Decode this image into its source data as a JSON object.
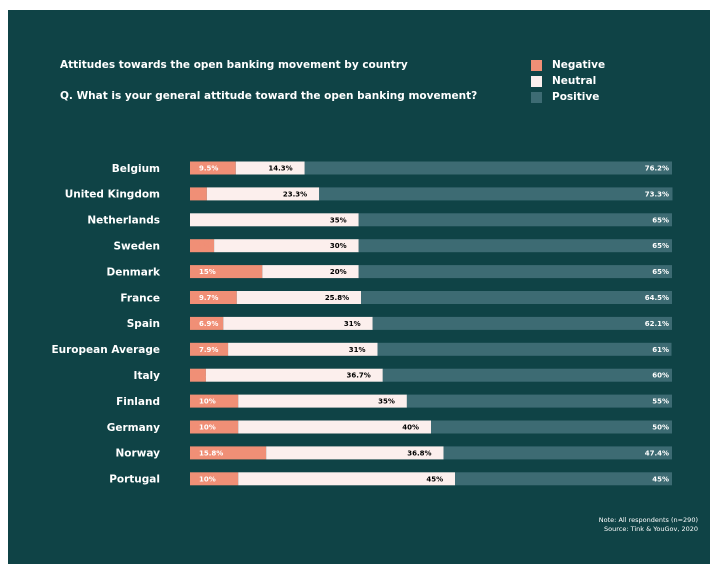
{
  "title": "Attitudes towards the open banking movement by country",
  "subtitle": "Q. What is your general attitude toward the open banking movement?",
  "note": "Note: All respondents (n=290)",
  "source": "Source: Tink & YouGov, 2020",
  "colors": {
    "background": "#0f4346",
    "negative": "#f08f76",
    "neutral": "#fcefed",
    "positive": "#3d6b73"
  },
  "legend": [
    {
      "name": "Negative",
      "color": "#f08f76"
    },
    {
      "name": "Neutral",
      "color": "#fcefed"
    },
    {
      "name": "Positive",
      "color": "#3d6b73"
    }
  ],
  "chart_data": {
    "type": "bar",
    "orientation": "horizontal",
    "stacked": true,
    "categories": [
      "Belgium",
      "United Kingdom",
      "Netherlands",
      "Sweden",
      "Denmark",
      "France",
      "Spain",
      "European Average",
      "Italy",
      "Finland",
      "Germany",
      "Norway",
      "Portugal"
    ],
    "series": [
      {
        "name": "Negative",
        "values": [
          9.5,
          3.5,
          0,
          5,
          15,
          9.7,
          6.9,
          7.9,
          3.3,
          10,
          10,
          15.8,
          10
        ],
        "labels": [
          "9.5%",
          "3.5%",
          "0%",
          "5%",
          "15%",
          "9.7%",
          "6.9%",
          "7.9%",
          "3.3%",
          "10%",
          "10%",
          "15.8%",
          "10%"
        ]
      },
      {
        "name": "Neutral",
        "values": [
          14.3,
          23.3,
          35,
          30,
          20,
          25.8,
          31,
          31,
          36.7,
          35,
          40,
          36.8,
          45
        ],
        "labels": [
          "14.3%",
          "23.3%",
          "35%",
          "30%",
          "20%",
          "25.8%",
          "31%",
          "31%",
          "36.7%",
          "35%",
          "40%",
          "36.8%",
          "45%"
        ]
      },
      {
        "name": "Positive",
        "values": [
          76.2,
          73.3,
          65,
          65,
          65,
          64.5,
          62.1,
          61,
          60,
          55,
          50,
          47.4,
          45
        ],
        "labels": [
          "76.2%",
          "73.3%",
          "65%",
          "65%",
          "65%",
          "64.5%",
          "62.1%",
          "61%",
          "60%",
          "55%",
          "50%",
          "47.4%",
          "45%"
        ]
      }
    ],
    "xlim": [
      0,
      100
    ],
    "legend_position": "top-right",
    "grid": false
  }
}
